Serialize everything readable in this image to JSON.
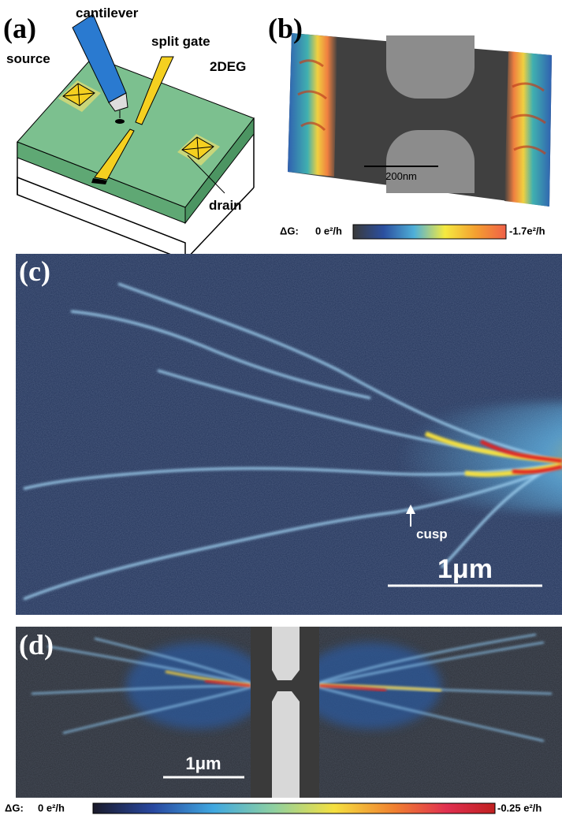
{
  "panel_a": {
    "label": "(a)",
    "cantilever": "cantilever",
    "split_gate": "split gate",
    "source": "source",
    "two_deg": "2DEG",
    "drain": "drain"
  },
  "panel_b": {
    "label": "(b)",
    "scale_bar": "200nm",
    "colorbar": {
      "title": "ΔG:",
      "min": "0 e²/h",
      "max": "-1.7e²/h"
    }
  },
  "panel_c": {
    "label": "(c)",
    "annotation": "cusp",
    "scale_bar": "1μm"
  },
  "panel_d": {
    "label": "(d)",
    "scale_bar": "1μm",
    "colorbar": {
      "title": "ΔG:",
      "min": "0 e²/h",
      "max": "-0.25 e²/h"
    }
  }
}
